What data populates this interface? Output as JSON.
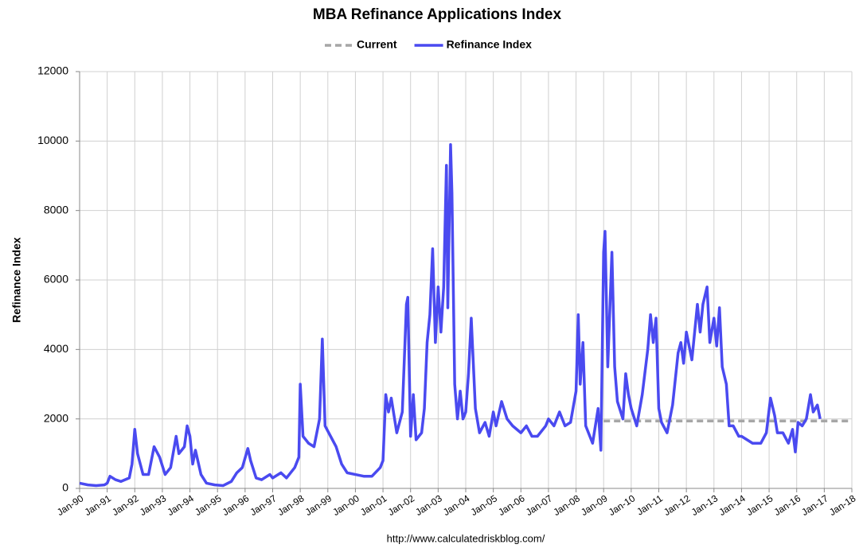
{
  "chart_data": {
    "type": "line",
    "title": "MBA Refinance Applications Index",
    "y_label": "Refinance Index",
    "footer": "http://www.calculatedriskblog.com/",
    "xlim": [
      1990,
      2018
    ],
    "xticks": [
      {
        "value": 1990,
        "label": "Jan-90"
      },
      {
        "value": 1991,
        "label": "Jan-91"
      },
      {
        "value": 1992,
        "label": "Jan-92"
      },
      {
        "value": 1993,
        "label": "Jan-93"
      },
      {
        "value": 1994,
        "label": "Jan-94"
      },
      {
        "value": 1995,
        "label": "Jan-95"
      },
      {
        "value": 1996,
        "label": "Jan-96"
      },
      {
        "value": 1997,
        "label": "Jan-97"
      },
      {
        "value": 1998,
        "label": "Jan-98"
      },
      {
        "value": 1999,
        "label": "Jan-99"
      },
      {
        "value": 2000,
        "label": "Jan-00"
      },
      {
        "value": 2001,
        "label": "Jan-01"
      },
      {
        "value": 2002,
        "label": "Jan-02"
      },
      {
        "value": 2003,
        "label": "Jan-03"
      },
      {
        "value": 2004,
        "label": "Jan-04"
      },
      {
        "value": 2005,
        "label": "Jan-05"
      },
      {
        "value": 2006,
        "label": "Jan-06"
      },
      {
        "value": 2007,
        "label": "Jan-07"
      },
      {
        "value": 2008,
        "label": "Jan-08"
      },
      {
        "value": 2009,
        "label": "Jan-09"
      },
      {
        "value": 2010,
        "label": "Jan-10"
      },
      {
        "value": 2011,
        "label": "Jan-11"
      },
      {
        "value": 2012,
        "label": "Jan-12"
      },
      {
        "value": 2013,
        "label": "Jan-13"
      },
      {
        "value": 2014,
        "label": "Jan-14"
      },
      {
        "value": 2015,
        "label": "Jan-15"
      },
      {
        "value": 2016,
        "label": "Jan-16"
      },
      {
        "value": 2017,
        "label": "Jan-17"
      },
      {
        "value": 2018,
        "label": "Jan-18"
      }
    ],
    "ylim": [
      0,
      12000
    ],
    "yticks": [
      0,
      2000,
      4000,
      6000,
      8000,
      10000,
      12000
    ],
    "grid": true,
    "series": [
      {
        "name": "Current",
        "color": "#a6a6a6",
        "dashed": true,
        "x": [
          2009,
          2018
        ],
        "values": [
          1940,
          1940
        ]
      },
      {
        "name": "Refinance Index",
        "color": "#4a4af0",
        "dashed": false,
        "x": [
          1990.0,
          1990.3,
          1990.6,
          1990.9,
          1991.0,
          1991.1,
          1991.3,
          1991.5,
          1991.8,
          1991.9,
          1992.0,
          1992.1,
          1992.3,
          1992.5,
          1992.7,
          1992.9,
          1993.1,
          1993.3,
          1993.5,
          1993.6,
          1993.8,
          1993.9,
          1994.0,
          1994.1,
          1994.2,
          1994.4,
          1994.6,
          1994.9,
          1995.2,
          1995.5,
          1995.7,
          1995.9,
          1996.1,
          1996.2,
          1996.4,
          1996.6,
          1996.9,
          1997.0,
          1997.3,
          1997.5,
          1997.8,
          1997.95,
          1998.0,
          1998.1,
          1998.3,
          1998.5,
          1998.7,
          1998.8,
          1998.9,
          1999.1,
          1999.3,
          1999.5,
          1999.7,
          2000.0,
          2000.3,
          2000.6,
          2000.9,
          2001.0,
          2001.1,
          2001.2,
          2001.3,
          2001.5,
          2001.7,
          2001.85,
          2001.9,
          2002.0,
          2002.1,
          2002.2,
          2002.4,
          2002.5,
          2002.6,
          2002.7,
          2002.8,
          2002.9,
          2003.0,
          2003.1,
          2003.2,
          2003.3,
          2003.35,
          2003.45,
          2003.5,
          2003.6,
          2003.7,
          2003.8,
          2003.9,
          2004.0,
          2004.1,
          2004.2,
          2004.35,
          2004.5,
          2004.7,
          2004.85,
          2005.0,
          2005.1,
          2005.3,
          2005.5,
          2005.7,
          2006.0,
          2006.2,
          2006.4,
          2006.6,
          2006.9,
          2007.0,
          2007.2,
          2007.4,
          2007.6,
          2007.8,
          2008.0,
          2008.08,
          2008.15,
          2008.25,
          2008.35,
          2008.6,
          2008.8,
          2008.9,
          2009.0,
          2009.05,
          2009.15,
          2009.3,
          2009.4,
          2009.5,
          2009.7,
          2009.8,
          2009.9,
          2010.0,
          2010.2,
          2010.4,
          2010.6,
          2010.7,
          2010.8,
          2010.9,
          2011.0,
          2011.1,
          2011.3,
          2011.5,
          2011.7,
          2011.8,
          2011.9,
          2012.0,
          2012.2,
          2012.4,
          2012.5,
          2012.6,
          2012.75,
          2012.85,
          2013.0,
          2013.1,
          2013.2,
          2013.3,
          2013.45,
          2013.55,
          2013.7,
          2013.9,
          2014.0,
          2014.2,
          2014.4,
          2014.7,
          2014.9,
          2015.05,
          2015.2,
          2015.3,
          2015.5,
          2015.7,
          2015.85,
          2015.95,
          2016.05,
          2016.2,
          2016.35,
          2016.5,
          2016.6,
          2016.75,
          2016.85
        ],
        "values": [
          150,
          100,
          80,
          100,
          150,
          350,
          250,
          200,
          300,
          700,
          1700,
          1000,
          400,
          400,
          1200,
          900,
          400,
          600,
          1500,
          1000,
          1200,
          1800,
          1500,
          700,
          1100,
          400,
          150,
          100,
          80,
          200,
          450,
          600,
          1150,
          800,
          300,
          250,
          400,
          300,
          450,
          300,
          600,
          900,
          3000,
          1500,
          1300,
          1200,
          2000,
          4300,
          1800,
          1500,
          1200,
          700,
          450,
          400,
          350,
          350,
          600,
          800,
          2700,
          2200,
          2600,
          1600,
          2200,
          5300,
          5500,
          1500,
          2700,
          1400,
          1600,
          2300,
          4200,
          5000,
          6900,
          4200,
          5800,
          4500,
          5800,
          9300,
          5200,
          9900,
          8500,
          3000,
          2000,
          2800,
          2000,
          2200,
          3300,
          4900,
          2300,
          1600,
          1900,
          1500,
          2200,
          1800,
          2500,
          2000,
          1800,
          1600,
          1800,
          1500,
          1500,
          1800,
          2000,
          1800,
          2200,
          1800,
          1900,
          2800,
          5000,
          3000,
          4200,
          1800,
          1300,
          2300,
          1100,
          6800,
          7400,
          3500,
          6800,
          3500,
          2500,
          2000,
          3300,
          2700,
          2300,
          1800,
          2700,
          4000,
          5000,
          4200,
          4900,
          2300,
          1900,
          1600,
          2400,
          3900,
          4200,
          3600,
          4500,
          3700,
          5300,
          4500,
          5300,
          5800,
          4200,
          4900,
          4100,
          5200,
          3500,
          3000,
          1800,
          1800,
          1500,
          1500,
          1400,
          1300,
          1300,
          1600,
          2600,
          2100,
          1600,
          1600,
          1300,
          1700,
          1050,
          1900,
          1800,
          2000,
          2700,
          2200,
          2400,
          2000
        ]
      }
    ]
  }
}
